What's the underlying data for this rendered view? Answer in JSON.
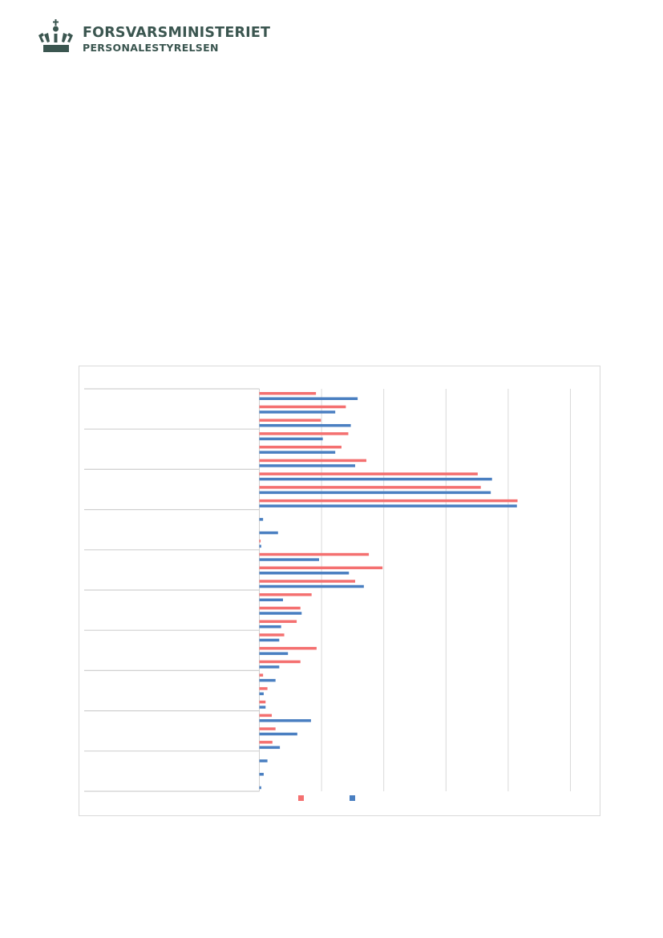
{
  "header": {
    "logo_line1": "FORSVARSMINISTERIET",
    "logo_line2": "PERSONALESTYRELSEN"
  },
  "chart_data": {
    "type": "bar",
    "orientation": "horizontal",
    "title": "",
    "xlabel": "",
    "ylabel": "",
    "grid": true,
    "xlim": [
      0,
      5
    ],
    "legend_placement": "bottom",
    "group_size": 3,
    "colors": {
      "series1": "#f47070",
      "series2": "#4a7fc1"
    },
    "series": [
      {
        "values": [
          0.91,
          1.39,
          0.99,
          1.43,
          1.32,
          1.72,
          3.51,
          3.56,
          4.15,
          0,
          0,
          0.02,
          1.76,
          1.98,
          1.54,
          0.84,
          0.66,
          0.6,
          0.4,
          0.92,
          0.66,
          0.06,
          0.13,
          0.1,
          0.2,
          0.26,
          0.21,
          0,
          0,
          0
        ]
      },
      {
        "values": [
          1.58,
          1.22,
          1.47,
          1.02,
          1.22,
          1.54,
          3.74,
          3.72,
          4.14,
          0.06,
          0.3,
          0.03,
          0.96,
          1.44,
          1.68,
          0.38,
          0.68,
          0.35,
          0.32,
          0.46,
          0.32,
          0.26,
          0.07,
          0.1,
          0.83,
          0.61,
          0.33,
          0.13,
          0.07,
          0.03
        ]
      }
    ]
  }
}
